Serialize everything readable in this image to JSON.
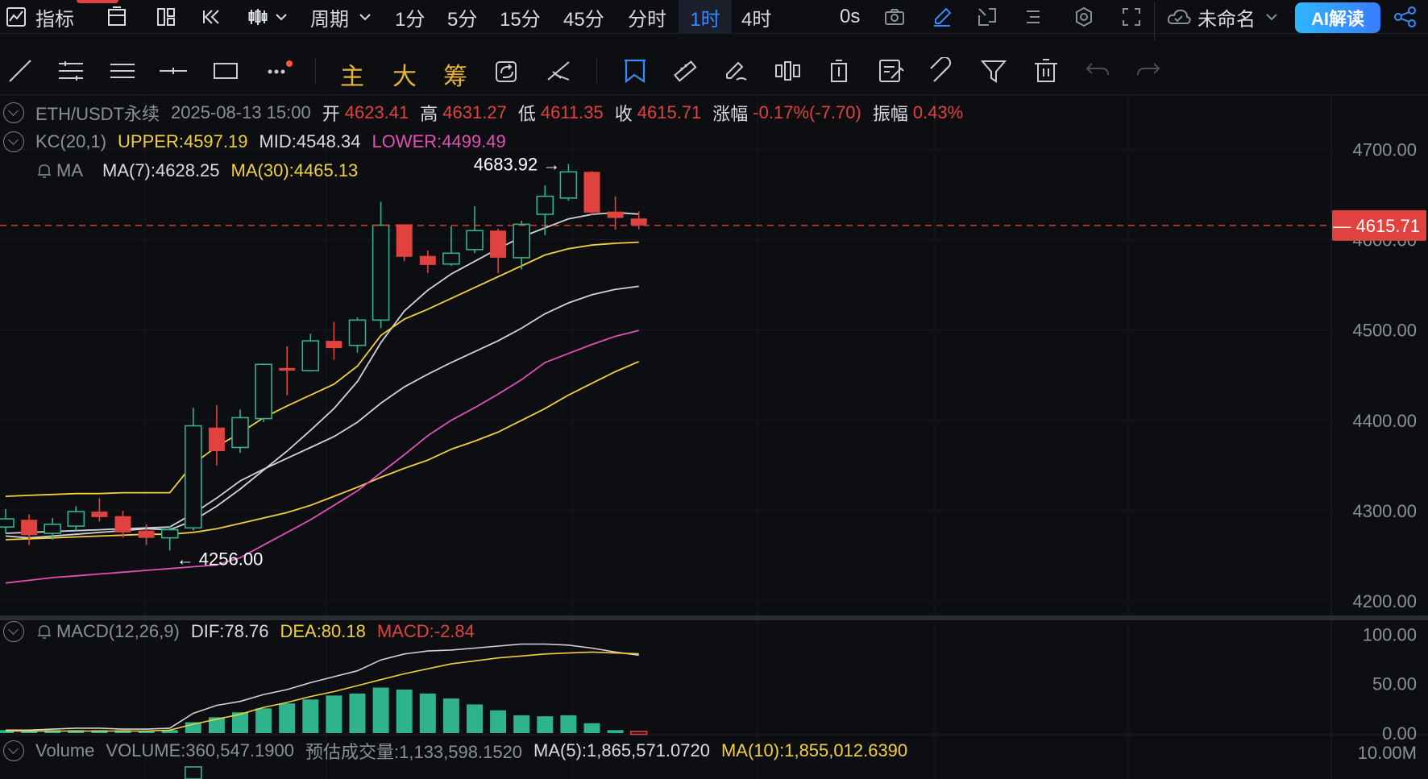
{
  "topbar": {
    "indicator_label": "指标",
    "period_label": "周期",
    "timeframes": [
      "1分",
      "5分",
      "15分",
      "45分",
      "分时",
      "1时",
      "4时"
    ],
    "active_timeframe": "1时",
    "countdown": "0s",
    "workspace_name": "未命名",
    "ai_button": "AI解读"
  },
  "toolbar2": {
    "main_label": "主",
    "big_label": "大",
    "chip_label": "筹"
  },
  "legend": {
    "symbol": "ETH/USDT永续",
    "datetime": "2025-08-13 15:00",
    "open_label": "开",
    "open": "4623.41",
    "high_label": "高",
    "high": "4631.27",
    "low_label": "低",
    "low": "4611.35",
    "close_label": "收",
    "close": "4615.71",
    "change_label": "涨幅",
    "change": "-0.17%(-7.70)",
    "amp_label": "振幅",
    "amp": "0.43%",
    "kc_name": "KC(20,1)",
    "kc_upper": "UPPER:4597.19",
    "kc_mid": "MID:4548.34",
    "kc_lower": "LOWER:4499.49",
    "ma_name": "MA",
    "ma7": "MA(7):4628.25",
    "ma30": "MA(30):4465.13"
  },
  "macd_legend": {
    "name": "MACD(12,26,9)",
    "dif": "DIF:78.76",
    "dea": "DEA:80.18",
    "macd": "MACD:-2.84"
  },
  "volume_legend": {
    "name": "Volume",
    "volume": "VOLUME:360,547.1900",
    "estimate": "预估成交量:1,133,598.1520",
    "ma5": "MA(5):1,865,571.0720",
    "ma10": "MA(10):1,855,012.6390"
  },
  "colors": {
    "up": "#2fb38a",
    "down": "#e0433f",
    "yellow": "#f2d03b",
    "magenta": "#e24fb8",
    "white": "#cfd3da",
    "accent": "#3a8bff"
  },
  "chart_data": [
    {
      "type": "candlestick",
      "title": "ETH/USDT永续 1时",
      "ylim": [
        4185,
        4760
      ],
      "yticks": [
        4200,
        4300,
        4400,
        4500,
        4600,
        4700
      ],
      "ytick_labels": [
        "4200.00",
        "4300.00",
        "4400.00",
        "4500.00",
        "4600.00",
        "4700.00"
      ],
      "current_price": 4615.71,
      "current_price_label": "4615.71",
      "max_label": "4683.92",
      "max_value": 4683.92,
      "max_index": 24,
      "min_label": "4256.00",
      "min_value": 4256.0,
      "min_index": 7,
      "candles": [
        {
          "o": 4282,
          "h": 4302,
          "l": 4275,
          "c": 4291
        },
        {
          "o": 4290,
          "h": 4296,
          "l": 4262,
          "c": 4273
        },
        {
          "o": 4275,
          "h": 4292,
          "l": 4268,
          "c": 4285
        },
        {
          "o": 4283,
          "h": 4305,
          "l": 4278,
          "c": 4299
        },
        {
          "o": 4299,
          "h": 4314,
          "l": 4288,
          "c": 4293
        },
        {
          "o": 4294,
          "h": 4300,
          "l": 4270,
          "c": 4276
        },
        {
          "o": 4278,
          "h": 4285,
          "l": 4262,
          "c": 4270
        },
        {
          "o": 4270,
          "h": 4283,
          "l": 4256,
          "c": 4279
        },
        {
          "o": 4281,
          "h": 4414,
          "l": 4278,
          "c": 4394
        },
        {
          "o": 4392,
          "h": 4417,
          "l": 4350,
          "c": 4366
        },
        {
          "o": 4370,
          "h": 4412,
          "l": 4364,
          "c": 4403
        },
        {
          "o": 4402,
          "h": 4463,
          "l": 4398,
          "c": 4462
        },
        {
          "o": 4458,
          "h": 4482,
          "l": 4428,
          "c": 4455
        },
        {
          "o": 4455,
          "h": 4496,
          "l": 4454,
          "c": 4488
        },
        {
          "o": 4488,
          "h": 4509,
          "l": 4467,
          "c": 4480
        },
        {
          "o": 4483,
          "h": 4514,
          "l": 4475,
          "c": 4511
        },
        {
          "o": 4511,
          "h": 4642,
          "l": 4502,
          "c": 4616
        },
        {
          "o": 4617,
          "h": 4617,
          "l": 4576,
          "c": 4581
        },
        {
          "o": 4582,
          "h": 4588,
          "l": 4563,
          "c": 4572
        },
        {
          "o": 4573,
          "h": 4615,
          "l": 4571,
          "c": 4585
        },
        {
          "o": 4589,
          "h": 4637,
          "l": 4585,
          "c": 4610
        },
        {
          "o": 4610,
          "h": 4612,
          "l": 4563,
          "c": 4580
        },
        {
          "o": 4580,
          "h": 4621,
          "l": 4567,
          "c": 4617
        },
        {
          "o": 4628,
          "h": 4660,
          "l": 4605,
          "c": 4648
        },
        {
          "o": 4646,
          "h": 4683.92,
          "l": 4643,
          "c": 4675
        },
        {
          "o": 4675,
          "h": 4676,
          "l": 4627,
          "c": 4630
        },
        {
          "o": 4631,
          "h": 4648,
          "l": 4611,
          "c": 4624
        },
        {
          "o": 4623.41,
          "h": 4631.27,
          "l": 4611.35,
          "c": 4615.71
        }
      ],
      "series": [
        {
          "name": "MA(7)",
          "color": "white",
          "values": [
            4272,
            4270,
            4272,
            4274,
            4276,
            4278,
            4280,
            4279,
            4289,
            4305,
            4324,
            4345,
            4366,
            4389,
            4413,
            4443,
            4486,
            4521,
            4544,
            4562,
            4576,
            4590,
            4603,
            4613,
            4623,
            4628,
            4630,
            4628.25
          ]
        },
        {
          "name": "UPPER",
          "color": "yellow",
          "values": [
            4316,
            4317,
            4318,
            4319,
            4319,
            4320,
            4320,
            4320,
            4352,
            4371,
            4386,
            4403,
            4416,
            4428,
            4440,
            4460,
            4494,
            4512,
            4523,
            4535,
            4547,
            4559,
            4571,
            4583,
            4590,
            4594,
            4596,
            4597.19
          ]
        },
        {
          "name": "MID",
          "color": "white",
          "values": [
            4275,
            4276,
            4277,
            4278,
            4279,
            4280,
            4281,
            4282,
            4297,
            4314,
            4333,
            4346,
            4358,
            4370,
            4382,
            4398,
            4419,
            4437,
            4451,
            4464,
            4476,
            4488,
            4502,
            4518,
            4530,
            4539,
            4545,
            4548.34
          ]
        },
        {
          "name": "MA(30)",
          "color": "yellow",
          "values": [
            4268,
            4269,
            4270,
            4271,
            4272,
            4273,
            4274,
            4274,
            4276,
            4280,
            4286,
            4292,
            4298,
            4306,
            4316,
            4326,
            4337,
            4347,
            4356,
            4368,
            4377,
            4387,
            4400,
            4413,
            4428,
            4441,
            4454,
            4465.13
          ]
        },
        {
          "name": "LOWER",
          "color": "magenta",
          "values": [
            4220,
            4223,
            4226,
            4228,
            4230,
            4232,
            4234,
            4236,
            4238,
            4240,
            4248,
            4262,
            4276,
            4290,
            4306,
            4322,
            4342,
            4362,
            4383,
            4400,
            4414,
            4429,
            4445,
            4464,
            4474,
            4484,
            4493,
            4499.49
          ]
        }
      ]
    },
    {
      "type": "bar",
      "title": "MACD(12,26,9)",
      "ylim": [
        0,
        110
      ],
      "yticks": [
        0,
        50,
        100
      ],
      "ytick_labels": [
        "0.00",
        "50.00",
        "100.00"
      ],
      "histogram": [
        3,
        3,
        3,
        3,
        3,
        3,
        2,
        3,
        11,
        16,
        21,
        25,
        30,
        34,
        38,
        40,
        46,
        44,
        40,
        35,
        29,
        23,
        18,
        17,
        18,
        10,
        3,
        -2.84
      ],
      "dif": [
        3,
        3,
        4,
        5,
        5,
        4,
        4,
        5,
        20,
        28,
        32,
        39,
        44,
        51,
        57,
        63,
        74,
        80,
        83,
        84,
        86,
        88,
        90,
        90,
        89,
        86,
        82,
        78.76
      ],
      "dea": [
        2,
        2,
        2,
        2,
        2,
        2,
        2,
        3,
        9,
        14,
        19,
        26,
        31,
        37,
        42,
        48,
        54,
        60,
        65,
        70,
        73,
        76,
        78,
        80,
        81,
        82,
        81,
        80.18
      ]
    },
    {
      "type": "bar",
      "title": "Volume",
      "ytick_labels": [
        "10.00M"
      ],
      "values": [
        360547.19
      ]
    }
  ]
}
